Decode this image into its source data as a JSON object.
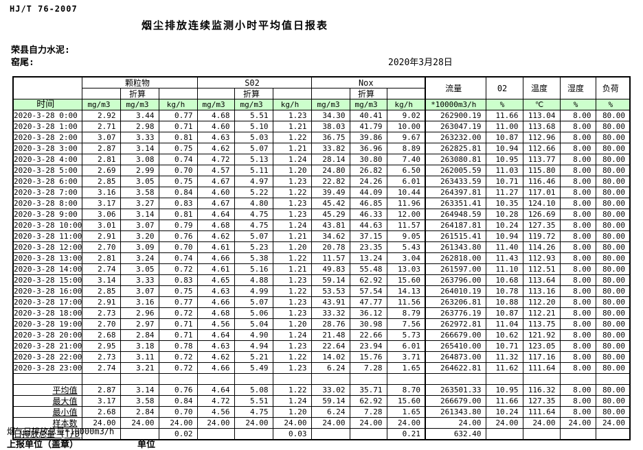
{
  "meta": {
    "standard": "HJ/T 76-2007",
    "title": "烟尘排放连续监测小时平均值日报表",
    "company": "荣县自力水泥:",
    "location": "窑尾:",
    "date": "2020年3月28日"
  },
  "table": {
    "time_header": "时间",
    "converted_label": "折算",
    "groups": [
      {
        "label": "颗粒物"
      },
      {
        "label": "S02"
      },
      {
        "label": "Nox"
      }
    ],
    "single_headers": [
      {
        "label": "流量"
      },
      {
        "label": "02"
      },
      {
        "label": "温度"
      },
      {
        "label": "湿度"
      },
      {
        "label": "负荷"
      }
    ],
    "units": [
      "mg/m3",
      "mg/m3",
      "kg/h",
      "mg/m3",
      "mg/m3",
      "kg/h",
      "mg/m3",
      "mg/m3",
      "kg/h",
      "*10000m3/h",
      "%",
      "℃",
      "%",
      "%"
    ],
    "rows": [
      {
        "time": "2020-3-28  0:00",
        "values": [
          "2.92",
          "3.44",
          "0.77",
          "4.68",
          "5.51",
          "1.23",
          "34.30",
          "40.41",
          "9.02",
          "262900.19",
          "11.66",
          "113.04",
          "8.00",
          "80.00"
        ]
      },
      {
        "time": "2020-3-28  1:00",
        "values": [
          "2.71",
          "2.98",
          "0.71",
          "4.60",
          "5.10",
          "1.21",
          "38.03",
          "41.79",
          "10.00",
          "263047.19",
          "11.00",
          "113.68",
          "8.00",
          "80.00"
        ]
      },
      {
        "time": "2020-3-28  2:00",
        "values": [
          "3.07",
          "3.33",
          "0.81",
          "4.63",
          "5.03",
          "1.22",
          "36.75",
          "39.86",
          "9.67",
          "263232.00",
          "10.87",
          "112.96",
          "8.00",
          "80.00"
        ]
      },
      {
        "time": "2020-3-28  3:00",
        "values": [
          "2.87",
          "3.14",
          "0.75",
          "4.62",
          "5.07",
          "1.21",
          "33.82",
          "36.96",
          "8.89",
          "262825.81",
          "10.94",
          "112.66",
          "8.00",
          "80.00"
        ]
      },
      {
        "time": "2020-3-28  4:00",
        "values": [
          "2.81",
          "3.08",
          "0.74",
          "4.72",
          "5.13",
          "1.24",
          "28.14",
          "30.80",
          "7.40",
          "263080.81",
          "10.95",
          "113.77",
          "8.00",
          "80.00"
        ]
      },
      {
        "time": "2020-3-28  5:00",
        "values": [
          "2.69",
          "2.99",
          "0.70",
          "4.57",
          "5.11",
          "1.20",
          "24.80",
          "26.82",
          "6.50",
          "262005.59",
          "11.03",
          "115.80",
          "8.00",
          "80.00"
        ]
      },
      {
        "time": "2020-3-28  6:00",
        "values": [
          "2.85",
          "3.05",
          "0.75",
          "4.67",
          "4.97",
          "1.23",
          "22.82",
          "24.26",
          "6.01",
          "263433.59",
          "10.71",
          "116.46",
          "8.00",
          "80.00"
        ]
      },
      {
        "time": "2020-3-28  7:00",
        "values": [
          "3.16",
          "3.58",
          "0.84",
          "4.60",
          "5.22",
          "1.22",
          "39.49",
          "44.09",
          "10.44",
          "264397.81",
          "11.27",
          "117.01",
          "8.00",
          "80.00"
        ]
      },
      {
        "time": "2020-3-28  8:00",
        "values": [
          "3.17",
          "3.27",
          "0.83",
          "4.67",
          "4.80",
          "1.23",
          "45.42",
          "46.85",
          "11.96",
          "263351.41",
          "10.35",
          "124.10",
          "8.00",
          "80.00"
        ]
      },
      {
        "time": "2020-3-28  9:00",
        "values": [
          "3.06",
          "3.14",
          "0.81",
          "4.64",
          "4.75",
          "1.23",
          "45.29",
          "46.33",
          "12.00",
          "264948.59",
          "10.28",
          "126.69",
          "8.00",
          "80.00"
        ]
      },
      {
        "time": "2020-3-28 10:00",
        "values": [
          "3.01",
          "3.07",
          "0.79",
          "4.68",
          "4.75",
          "1.24",
          "43.81",
          "44.63",
          "11.57",
          "264187.81",
          "10.24",
          "127.35",
          "8.00",
          "80.00"
        ]
      },
      {
        "time": "2020-3-28 11:00",
        "values": [
          "2.91",
          "3.20",
          "0.76",
          "4.62",
          "5.07",
          "1.21",
          "34.62",
          "37.15",
          "9.05",
          "261515.41",
          "10.94",
          "119.72",
          "8.00",
          "80.00"
        ]
      },
      {
        "time": "2020-3-28 12:00",
        "values": [
          "2.70",
          "3.09",
          "0.70",
          "4.61",
          "5.23",
          "1.20",
          "20.78",
          "23.35",
          "5.43",
          "261343.80",
          "11.40",
          "114.26",
          "8.00",
          "80.00"
        ]
      },
      {
        "time": "2020-3-28 13:00",
        "values": [
          "2.81",
          "3.24",
          "0.74",
          "4.66",
          "5.38",
          "1.22",
          "11.57",
          "13.24",
          "3.04",
          "262818.00",
          "11.43",
          "112.93",
          "8.00",
          "80.00"
        ]
      },
      {
        "time": "2020-3-28 14:00",
        "values": [
          "2.74",
          "3.05",
          "0.72",
          "4.61",
          "5.16",
          "1.21",
          "49.83",
          "55.48",
          "13.03",
          "261597.00",
          "11.10",
          "112.51",
          "8.00",
          "80.00"
        ]
      },
      {
        "time": "2020-3-28 15:00",
        "values": [
          "3.14",
          "3.33",
          "0.83",
          "4.65",
          "4.88",
          "1.23",
          "59.14",
          "62.92",
          "15.60",
          "263796.00",
          "10.68",
          "113.64",
          "8.00",
          "80.00"
        ]
      },
      {
        "time": "2020-3-28 16:00",
        "values": [
          "2.85",
          "3.07",
          "0.75",
          "4.63",
          "4.99",
          "1.22",
          "53.53",
          "57.54",
          "14.13",
          "264010.19",
          "10.78",
          "113.16",
          "8.00",
          "80.00"
        ]
      },
      {
        "time": "2020-3-28 17:00",
        "values": [
          "2.91",
          "3.16",
          "0.77",
          "4.66",
          "5.07",
          "1.23",
          "43.91",
          "47.77",
          "11.56",
          "263206.81",
          "10.88",
          "112.20",
          "8.00",
          "80.00"
        ]
      },
      {
        "time": "2020-3-28 18:00",
        "values": [
          "2.73",
          "2.96",
          "0.72",
          "4.68",
          "5.06",
          "1.23",
          "33.32",
          "36.12",
          "8.79",
          "263776.19",
          "10.87",
          "112.21",
          "8.00",
          "80.00"
        ]
      },
      {
        "time": "2020-3-28 19:00",
        "values": [
          "2.70",
          "2.97",
          "0.71",
          "4.56",
          "5.04",
          "1.20",
          "28.76",
          "30.98",
          "7.56",
          "262972.81",
          "11.04",
          "113.75",
          "8.00",
          "80.00"
        ]
      },
      {
        "time": "2020-3-28 20:00",
        "values": [
          "2.68",
          "2.84",
          "0.71",
          "4.64",
          "4.90",
          "1.24",
          "21.48",
          "22.66",
          "5.73",
          "266679.00",
          "10.62",
          "121.92",
          "8.00",
          "80.00"
        ]
      },
      {
        "time": "2020-3-28 21:00",
        "values": [
          "2.95",
          "3.18",
          "0.78",
          "4.63",
          "4.94",
          "1.23",
          "22.64",
          "23.94",
          "6.01",
          "265410.00",
          "10.71",
          "123.05",
          "8.00",
          "80.00"
        ]
      },
      {
        "time": "2020-3-28 22:00",
        "values": [
          "2.73",
          "3.11",
          "0.72",
          "4.62",
          "5.21",
          "1.22",
          "14.02",
          "15.76",
          "3.71",
          "264873.00",
          "11.32",
          "117.16",
          "8.00",
          "80.00"
        ]
      },
      {
        "time": "2020-3-28 23:00",
        "values": [
          "2.74",
          "3.21",
          "0.72",
          "4.66",
          "5.49",
          "1.23",
          "6.24",
          "7.28",
          "1.65",
          "264622.81",
          "11.62",
          "111.64",
          "8.00",
          "80.00"
        ]
      }
    ],
    "summary_rows": [
      {
        "label": "平均值",
        "values": [
          "2.87",
          "3.14",
          "0.76",
          "4.64",
          "5.08",
          "1.22",
          "33.02",
          "35.71",
          "8.70",
          "263501.33",
          "10.95",
          "116.32",
          "8.00",
          "80.00"
        ]
      },
      {
        "label": "最大值",
        "values": [
          "3.17",
          "3.58",
          "0.84",
          "4.72",
          "5.51",
          "1.24",
          "59.14",
          "62.92",
          "15.60",
          "266679.00",
          "11.66",
          "127.35",
          "8.00",
          "80.00"
        ]
      },
      {
        "label": "最小值",
        "values": [
          "2.68",
          "2.84",
          "0.70",
          "4.56",
          "4.75",
          "1.20",
          "6.24",
          "7.28",
          "1.65",
          "261343.80",
          "10.24",
          "111.64",
          "8.00",
          "80.00"
        ]
      },
      {
        "label": "样本数",
        "values": [
          "24.00",
          "24.00",
          "24.00",
          "24.00",
          "24.00",
          "24.00",
          "24.00",
          "24.00",
          "24.00",
          "24.00",
          "24.00",
          "24.00",
          "24.00",
          "24.00"
        ]
      }
    ],
    "daily_total_row": {
      "label": "日排放总量 (T/D)",
      "values": [
        "",
        "",
        "0.02",
        "",
        "",
        "0.03",
        "",
        "",
        "0.21",
        "632.40",
        "",
        "",
        "",
        ""
      ]
    }
  },
  "footer": {
    "flow_note": "烟气日排放总量*10000m3/h",
    "report_unit": "上报单位（盖章）",
    "unit_label": "单位"
  },
  "colors": {
    "header_green": "#ccffcc",
    "grid": "#000000"
  }
}
